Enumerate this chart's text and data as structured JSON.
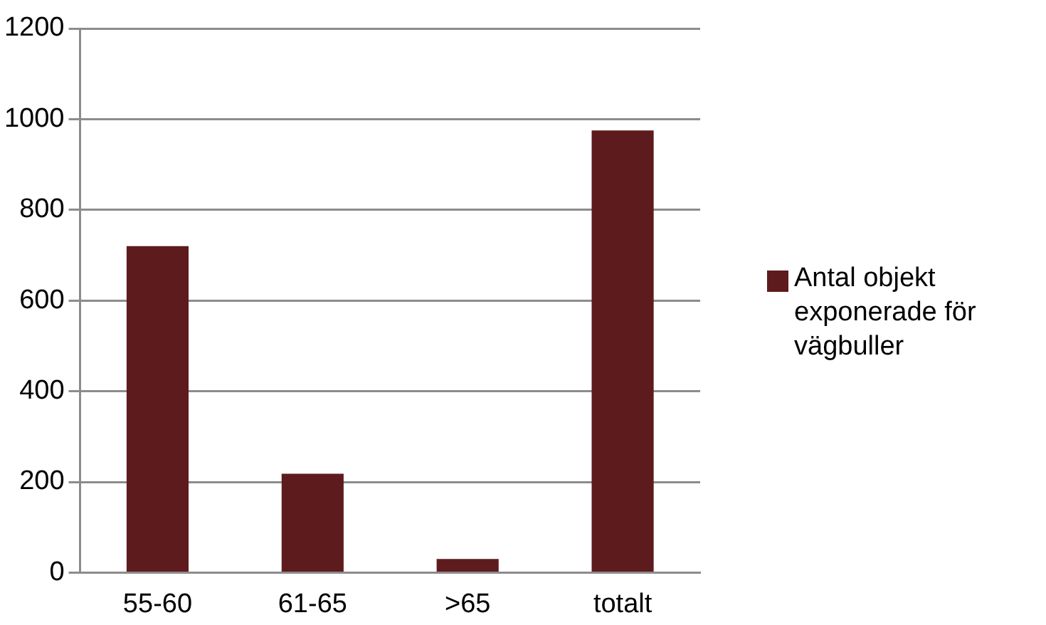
{
  "chart_data": {
    "type": "bar",
    "categories": [
      "55-60",
      "61-65",
      ">65",
      "totalt"
    ],
    "series": [
      {
        "name": "Antal objekt exponerade för vägbuller",
        "color": "#5e1b1d",
        "values": [
          720,
          218,
          30,
          975
        ]
      }
    ],
    "ylim": [
      0,
      1200
    ],
    "yticks": [
      0,
      200,
      400,
      600,
      800,
      1000,
      1200
    ],
    "grid": "y",
    "legend": "right"
  }
}
